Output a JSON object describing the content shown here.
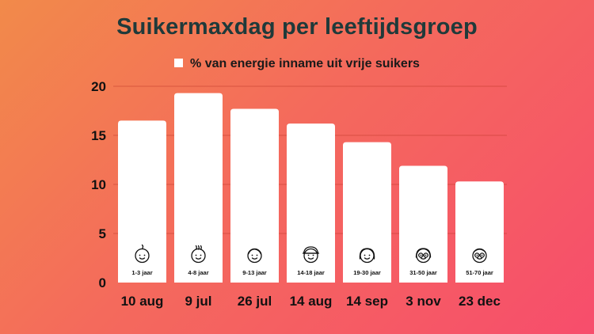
{
  "chart_data": {
    "type": "bar",
    "title": "Suikermaxdag per leeftijdsgroep",
    "legend": [
      "% van energie inname uit vrije suikers"
    ],
    "legend_position": "top",
    "categories": [
      "10 aug",
      "9 jul",
      "26 jul",
      "14 aug",
      "14 sep",
      "3 nov",
      "23 dec"
    ],
    "age_groups": [
      "1-3 jaar",
      "4-8 jaar",
      "9-13 jaar",
      "14-18 jaar",
      "19-30 jaar",
      "31-50 jaar",
      "51-70 jaar"
    ],
    "age_icons": [
      "baby-face-icon",
      "toddler-face-icon",
      "child-face-icon",
      "teen-cap-face-icon",
      "young-adult-face-icon",
      "adult-glasses-face-icon",
      "senior-glasses-face-icon"
    ],
    "series": [
      {
        "name": "% van energie inname uit vrije suikers",
        "values": [
          16.5,
          19.3,
          17.7,
          16.2,
          14.3,
          11.9,
          10.3
        ]
      }
    ],
    "yticks": [
      0,
      5,
      10,
      15,
      20
    ],
    "ylim": [
      0,
      20
    ],
    "grid": true,
    "colors": {
      "bar": "#ffffff",
      "grid": "#c0392b",
      "title": "#1f3a3a"
    }
  }
}
